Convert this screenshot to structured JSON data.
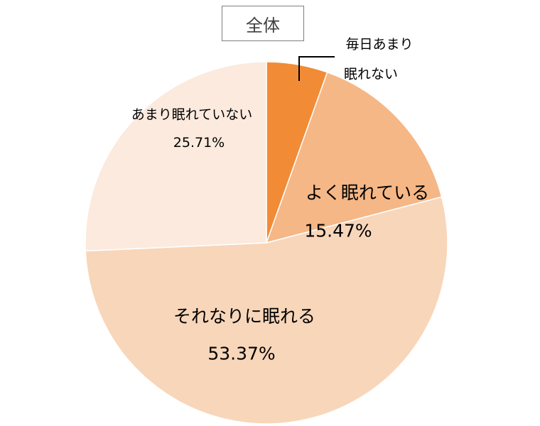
{
  "chart_data": {
    "type": "pie",
    "title": "全体",
    "slices": [
      {
        "label": "毎日あまり眠れない",
        "label_lines": [
          "毎日あまり",
          "眠れない"
        ],
        "value": 5.45,
        "value_label": "",
        "color": "#f28b36"
      },
      {
        "label": "よく眠れている",
        "value": 15.47,
        "value_label": "15.47%",
        "color": "#f5b786"
      },
      {
        "label": "それなりに眠れる",
        "value": 53.37,
        "value_label": "53.37%",
        "color": "#f8d6ba"
      },
      {
        "label": "あまり眠れていない",
        "value": 25.71,
        "value_label": "25.71%",
        "color": "#fbeadd"
      }
    ],
    "legend": "none"
  }
}
